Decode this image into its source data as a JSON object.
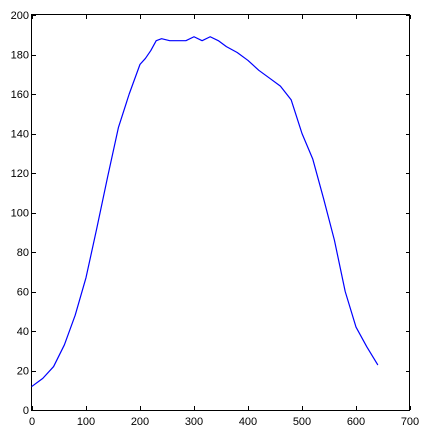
{
  "chart_data": {
    "type": "line",
    "title": "",
    "xlabel": "",
    "ylabel": "",
    "xlim": [
      0,
      700
    ],
    "ylim": [
      0,
      200
    ],
    "x_ticks": [
      0,
      100,
      200,
      300,
      400,
      500,
      600,
      700
    ],
    "y_ticks": [
      0,
      20,
      40,
      60,
      80,
      100,
      120,
      140,
      160,
      180,
      200
    ],
    "grid": false,
    "legend": "none",
    "series": [
      {
        "color": "#0000ff",
        "x": [
          0,
          20,
          40,
          60,
          80,
          100,
          120,
          140,
          160,
          180,
          200,
          210,
          220,
          230,
          240,
          255,
          270,
          285,
          300,
          315,
          330,
          345,
          360,
          380,
          400,
          420,
          440,
          460,
          480,
          500,
          520,
          540,
          560,
          580,
          600,
          620,
          640
        ],
        "y": [
          12,
          16,
          22,
          33,
          48,
          67,
          92,
          118,
          143,
          160,
          175,
          178,
          182,
          187,
          188,
          187,
          187,
          187,
          189,
          187,
          189,
          187,
          184,
          181,
          177,
          172,
          168,
          164,
          157,
          140,
          127,
          107,
          86,
          60,
          42,
          32,
          23
        ]
      }
    ]
  }
}
